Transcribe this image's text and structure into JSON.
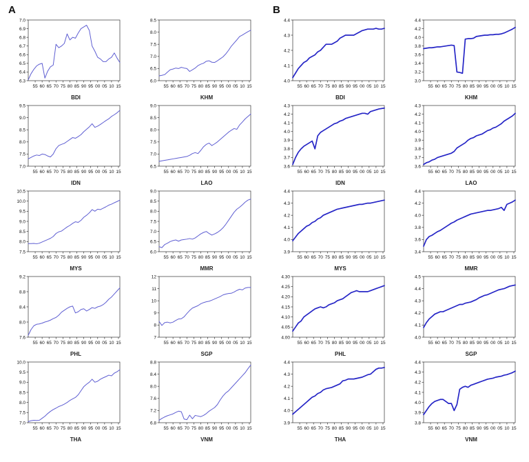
{
  "chart_data": {
    "type": "line",
    "x": {
      "start": 1950,
      "end": 2016,
      "step": 2,
      "tick_years": [
        1955,
        1960,
        1965,
        1970,
        1975,
        1980,
        1985,
        1990,
        1995,
        2000,
        2005,
        2010,
        2015
      ],
      "tick_labels": [
        "55",
        "60",
        "65",
        "70",
        "75",
        "80",
        "85",
        "90",
        "95",
        "00",
        "05",
        "10",
        "15"
      ]
    },
    "panels": [
      {
        "label": "A",
        "line_color": "#5e5ed2",
        "line_width": 1,
        "charts": [
          {
            "name": "BDI",
            "ylim": [
              6.3,
              7.0
            ],
            "ystep": 0.1,
            "ydec": 1,
            "values": [
              6.31,
              6.38,
              6.43,
              6.47,
              6.49,
              6.5,
              6.33,
              6.41,
              6.46,
              6.48,
              6.72,
              6.68,
              6.7,
              6.73,
              6.84,
              6.77,
              6.8,
              6.79,
              6.85,
              6.9,
              6.92,
              6.94,
              6.88,
              6.7,
              6.64,
              6.57,
              6.55,
              6.52,
              6.52,
              6.55,
              6.57,
              6.62,
              6.56,
              6.51
            ]
          },
          {
            "name": "KHM",
            "ylim": [
              6.0,
              8.5
            ],
            "ystep": 0.5,
            "ydec": 1,
            "values": [
              6.2,
              6.22,
              6.25,
              6.35,
              6.45,
              6.48,
              6.52,
              6.5,
              6.55,
              6.52,
              6.5,
              6.38,
              6.45,
              6.52,
              6.62,
              6.68,
              6.72,
              6.8,
              6.82,
              6.76,
              6.75,
              6.82,
              6.9,
              6.98,
              7.1,
              7.25,
              7.42,
              7.55,
              7.68,
              7.82,
              7.88,
              7.95,
              8.02,
              8.08
            ]
          },
          {
            "name": "IDN",
            "ylim": [
              7.0,
              9.5
            ],
            "ystep": 0.5,
            "ydec": 1,
            "values": [
              7.3,
              7.36,
              7.42,
              7.46,
              7.44,
              7.5,
              7.48,
              7.42,
              7.38,
              7.5,
              7.72,
              7.85,
              7.9,
              7.94,
              8.02,
              8.1,
              8.18,
              8.15,
              8.22,
              8.3,
              8.42,
              8.52,
              8.62,
              8.75,
              8.6,
              8.65,
              8.72,
              8.8,
              8.88,
              8.95,
              9.05,
              9.12,
              9.2,
              9.3
            ]
          },
          {
            "name": "LAO",
            "ylim": [
              6.5,
              9.0
            ],
            "ystep": 0.5,
            "ydec": 1,
            "values": [
              6.7,
              6.72,
              6.74,
              6.76,
              6.78,
              6.8,
              6.82,
              6.84,
              6.86,
              6.88,
              6.9,
              6.95,
              7.02,
              7.06,
              7.02,
              7.15,
              7.3,
              7.4,
              7.45,
              7.35,
              7.42,
              7.5,
              7.6,
              7.7,
              7.8,
              7.9,
              7.98,
              8.05,
              8.02,
              8.2,
              8.32,
              8.45,
              8.55,
              8.65
            ]
          },
          {
            "name": "MYS",
            "ylim": [
              7.5,
              10.5
            ],
            "ystep": 0.5,
            "ydec": 1,
            "values": [
              7.9,
              7.9,
              7.91,
              7.89,
              7.92,
              7.98,
              8.04,
              8.1,
              8.16,
              8.25,
              8.4,
              8.48,
              8.52,
              8.62,
              8.72,
              8.8,
              8.9,
              8.98,
              8.95,
              9.05,
              9.2,
              9.3,
              9.42,
              9.58,
              9.5,
              9.6,
              9.58,
              9.65,
              9.72,
              9.8,
              9.85,
              9.92,
              9.98,
              10.05
            ]
          },
          {
            "name": "MMR",
            "ylim": [
              6.0,
              9.0
            ],
            "ystep": 0.5,
            "ydec": 1,
            "values": [
              6.25,
              6.2,
              6.35,
              6.42,
              6.5,
              6.55,
              6.58,
              6.52,
              6.58,
              6.6,
              6.62,
              6.65,
              6.62,
              6.68,
              6.78,
              6.88,
              6.95,
              7.0,
              6.9,
              6.82,
              6.88,
              6.95,
              7.05,
              7.18,
              7.35,
              7.55,
              7.75,
              7.95,
              8.1,
              8.2,
              8.32,
              8.45,
              8.55,
              8.6
            ]
          },
          {
            "name": "PHL",
            "ylim": [
              7.6,
              9.2
            ],
            "ystep": 0.4,
            "ydec": 1,
            "values": [
              7.65,
              7.8,
              7.9,
              7.94,
              7.95,
              7.97,
              8.0,
              8.02,
              8.05,
              8.09,
              8.12,
              8.18,
              8.26,
              8.31,
              8.36,
              8.4,
              8.42,
              8.24,
              8.27,
              8.33,
              8.35,
              8.29,
              8.33,
              8.38,
              8.36,
              8.4,
              8.42,
              8.46,
              8.52,
              8.6,
              8.66,
              8.74,
              8.82,
              8.9
            ]
          },
          {
            "name": "SGP",
            "ylim": [
              7,
              12
            ],
            "ystep": 1,
            "ydec": 0,
            "values": [
              8.3,
              7.97,
              8.2,
              8.24,
              8.18,
              8.24,
              8.38,
              8.5,
              8.52,
              8.68,
              8.95,
              9.2,
              9.4,
              9.5,
              9.6,
              9.75,
              9.85,
              9.92,
              9.96,
              10.05,
              10.15,
              10.25,
              10.35,
              10.48,
              10.55,
              10.6,
              10.62,
              10.72,
              10.85,
              10.95,
              10.9,
              11.05,
              11.1,
              11.1
            ]
          },
          {
            "name": "THA",
            "ylim": [
              7.0,
              10.0
            ],
            "ystep": 0.5,
            "ydec": 1,
            "values": [
              7.05,
              7.1,
              7.12,
              7.11,
              7.12,
              7.22,
              7.32,
              7.45,
              7.56,
              7.65,
              7.72,
              7.8,
              7.85,
              7.92,
              8.0,
              8.1,
              8.18,
              8.25,
              8.38,
              8.58,
              8.78,
              8.9,
              9.0,
              9.15,
              9.0,
              9.05,
              9.15,
              9.22,
              9.28,
              9.35,
              9.32,
              9.45,
              9.52,
              9.62
            ]
          },
          {
            "name": "VNM",
            "ylim": [
              6.8,
              8.8
            ],
            "ystep": 0.4,
            "ydec": 1,
            "values": [
              6.88,
              6.94,
              6.99,
              7.03,
              7.06,
              7.09,
              7.14,
              7.18,
              7.16,
              6.92,
              6.9,
              7.05,
              6.93,
              7.04,
              7.02,
              7.0,
              7.04,
              7.1,
              7.18,
              7.24,
              7.3,
              7.4,
              7.55,
              7.68,
              7.78,
              7.85,
              7.95,
              8.05,
              8.15,
              8.25,
              8.35,
              8.45,
              8.58,
              8.7
            ]
          }
        ]
      },
      {
        "label": "B",
        "line_color": "#2525c6",
        "line_width": 1.7,
        "charts": [
          {
            "name": "BDI",
            "ylim": [
              4.0,
              4.4
            ],
            "ystep": 0.1,
            "ydec": 1,
            "values": [
              4.02,
              4.05,
              4.08,
              4.1,
              4.12,
              4.13,
              4.15,
              4.16,
              4.17,
              4.19,
              4.2,
              4.22,
              4.24,
              4.24,
              4.24,
              4.25,
              4.26,
              4.28,
              4.29,
              4.3,
              4.3,
              4.3,
              4.3,
              4.31,
              4.32,
              4.33,
              4.335,
              4.34,
              4.34,
              4.34,
              4.345,
              4.34,
              4.34,
              4.345
            ]
          },
          {
            "name": "KHM",
            "ylim": [
              3.0,
              4.4
            ],
            "ystep": 0.2,
            "ydec": 1,
            "values": [
              3.74,
              3.75,
              3.76,
              3.76,
              3.77,
              3.78,
              3.78,
              3.79,
              3.8,
              3.81,
              3.82,
              3.81,
              3.2,
              3.19,
              3.17,
              3.96,
              3.97,
              3.97,
              3.98,
              4.02,
              4.03,
              4.04,
              4.05,
              4.05,
              4.06,
              4.06,
              4.07,
              4.07,
              4.08,
              4.1,
              4.13,
              4.16,
              4.19,
              4.23
            ]
          },
          {
            "name": "IDN",
            "ylim": [
              3.6,
              4.3
            ],
            "ystep": 0.1,
            "ydec": 1,
            "values": [
              3.62,
              3.7,
              3.76,
              3.8,
              3.83,
              3.85,
              3.87,
              3.89,
              3.8,
              3.95,
              3.99,
              4.01,
              4.03,
              4.05,
              4.07,
              4.09,
              4.1,
              4.12,
              4.13,
              4.15,
              4.16,
              4.17,
              4.18,
              4.19,
              4.2,
              4.21,
              4.21,
              4.2,
              4.23,
              4.24,
              4.25,
              4.26,
              4.265,
              4.27
            ]
          },
          {
            "name": "LAO",
            "ylim": [
              3.6,
              4.3
            ],
            "ystep": 0.1,
            "ydec": 1,
            "values": [
              3.62,
              3.64,
              3.65,
              3.67,
              3.68,
              3.7,
              3.71,
              3.72,
              3.73,
              3.74,
              3.75,
              3.77,
              3.81,
              3.83,
              3.85,
              3.87,
              3.9,
              3.92,
              3.93,
              3.95,
              3.96,
              3.97,
              3.99,
              4.01,
              4.02,
              4.04,
              4.05,
              4.07,
              4.09,
              4.12,
              4.14,
              4.16,
              4.18,
              4.21
            ]
          },
          {
            "name": "MYS",
            "ylim": [
              3.9,
              4.4
            ],
            "ystep": 0.1,
            "ydec": 1,
            "values": [
              3.99,
              4.02,
              4.05,
              4.07,
              4.09,
              4.11,
              4.12,
              4.14,
              4.15,
              4.17,
              4.18,
              4.2,
              4.21,
              4.22,
              4.23,
              4.24,
              4.25,
              4.255,
              4.26,
              4.265,
              4.27,
              4.275,
              4.28,
              4.285,
              4.29,
              4.29,
              4.295,
              4.3,
              4.3,
              4.305,
              4.31,
              4.315,
              4.32,
              4.325
            ]
          },
          {
            "name": "MMR",
            "ylim": [
              3.4,
              4.4
            ],
            "ystep": 0.2,
            "ydec": 1,
            "values": [
              3.49,
              3.6,
              3.65,
              3.67,
              3.7,
              3.73,
              3.75,
              3.78,
              3.81,
              3.84,
              3.87,
              3.89,
              3.92,
              3.94,
              3.96,
              3.98,
              4.0,
              4.02,
              4.03,
              4.04,
              4.05,
              4.06,
              4.07,
              4.08,
              4.08,
              4.09,
              4.1,
              4.11,
              4.13,
              4.08,
              4.18,
              4.2,
              4.22,
              4.25
            ]
          },
          {
            "name": "PHL",
            "ylim": [
              4.0,
              4.3
            ],
            "ystep": 0.05,
            "ydec": 2,
            "values": [
              4.03,
              4.05,
              4.07,
              4.08,
              4.1,
              4.11,
              4.12,
              4.13,
              4.14,
              4.145,
              4.15,
              4.145,
              4.15,
              4.16,
              4.165,
              4.17,
              4.18,
              4.185,
              4.19,
              4.2,
              4.21,
              4.22,
              4.225,
              4.23,
              4.225,
              4.225,
              4.225,
              4.225,
              4.23,
              4.235,
              4.24,
              4.245,
              4.25,
              4.255
            ]
          },
          {
            "name": "SGP",
            "ylim": [
              4.0,
              4.5
            ],
            "ystep": 0.1,
            "ydec": 1,
            "values": [
              4.08,
              4.12,
              4.15,
              4.17,
              4.19,
              4.2,
              4.21,
              4.21,
              4.22,
              4.23,
              4.24,
              4.25,
              4.26,
              4.27,
              4.27,
              4.28,
              4.285,
              4.29,
              4.3,
              4.31,
              4.325,
              4.335,
              4.345,
              4.35,
              4.36,
              4.37,
              4.38,
              4.39,
              4.395,
              4.4,
              4.41,
              4.42,
              4.425,
              4.43
            ]
          },
          {
            "name": "THA",
            "ylim": [
              3.9,
              4.4
            ],
            "ystep": 0.1,
            "ydec": 1,
            "values": [
              3.97,
              3.99,
              4.01,
              4.03,
              4.05,
              4.07,
              4.09,
              4.11,
              4.12,
              4.14,
              4.15,
              4.17,
              4.18,
              4.185,
              4.19,
              4.2,
              4.21,
              4.22,
              4.245,
              4.25,
              4.26,
              4.26,
              4.26,
              4.265,
              4.27,
              4.275,
              4.285,
              4.295,
              4.3,
              4.32,
              4.34,
              4.35,
              4.35,
              4.355
            ]
          },
          {
            "name": "VNM",
            "ylim": [
              3.8,
              4.4
            ],
            "ystep": 0.1,
            "ydec": 1,
            "values": [
              3.88,
              3.92,
              3.96,
              3.99,
              4.01,
              4.02,
              4.03,
              4.03,
              4.01,
              3.99,
              3.99,
              3.92,
              3.98,
              4.13,
              4.15,
              4.16,
              4.15,
              4.17,
              4.18,
              4.19,
              4.2,
              4.21,
              4.22,
              4.23,
              4.235,
              4.24,
              4.25,
              4.255,
              4.26,
              4.27,
              4.275,
              4.285,
              4.295,
              4.31
            ]
          }
        ]
      }
    ]
  }
}
